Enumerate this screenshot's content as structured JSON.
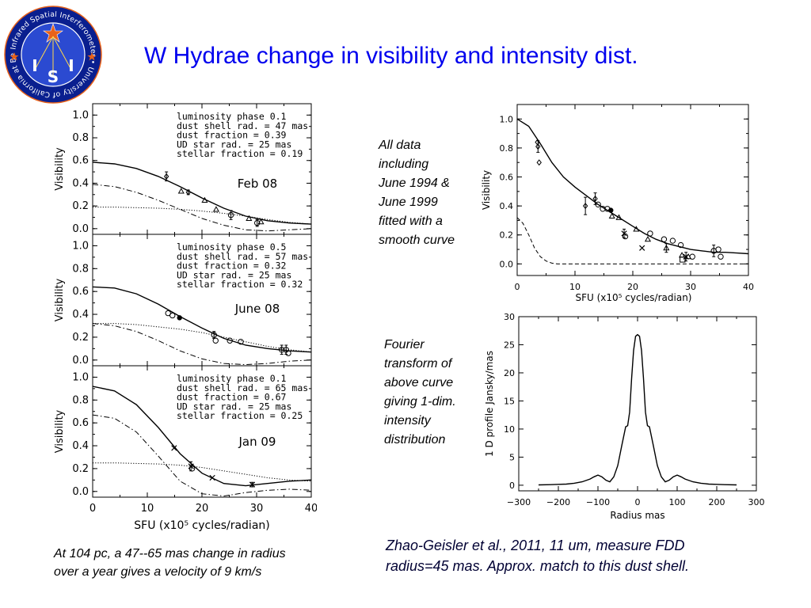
{
  "title": "W Hydrae change in visibility and intensity dist.",
  "logo": {
    "ring_text": "Infrared Spatial Interferometer • University of California at Berkeley",
    "letters": [
      "I",
      "S",
      "I"
    ],
    "colors": {
      "ring": "#0a1f8f",
      "star": "#e8621a",
      "text": "#ffffff"
    }
  },
  "notes": {
    "all_data": [
      "All data",
      "including",
      "June 1994 &",
      "June 1999",
      "fitted with a",
      "smooth curve"
    ],
    "fourier": [
      "Fourier",
      "transform of",
      "above curve",
      "giving 1-dim.",
      "intensity",
      "distribution"
    ],
    "bottom": [
      "At 104 pc, a 47--65 mas change in radius",
      "over a year gives a velocity of 9 km/s"
    ],
    "citation": [
      "Zhao-Geisler et al., 2011, 11 um, measure FDD",
      "radius=45 mas.  Approx. match to this dust shell."
    ]
  },
  "chart_data": [
    {
      "type": "line",
      "panel": "feb08",
      "label": "Feb 08",
      "xlabel": "",
      "ylabel": "Visibility",
      "xlim": [
        0,
        40
      ],
      "ylim": [
        -0.05,
        1.1
      ],
      "yticks": [
        "1.0",
        "0.8",
        "0.6",
        "0.4",
        "0.2",
        "0.0"
      ],
      "params": [
        "luminosity phase 0.1",
        "dust shell rad. = 47 mas",
        "dust fraction = 0.39",
        "UD star rad. = 25 mas",
        "stellar fraction = 0.19"
      ],
      "series": [
        {
          "style": "solid",
          "x": [
            0,
            4,
            8,
            12,
            16,
            20,
            24,
            28,
            32,
            36,
            40
          ],
          "y": [
            0.585,
            0.57,
            0.53,
            0.46,
            0.37,
            0.27,
            0.18,
            0.11,
            0.07,
            0.05,
            0.04
          ]
        },
        {
          "style": "dashdot",
          "x": [
            0,
            4,
            8,
            12,
            16,
            20,
            24,
            28,
            32,
            36,
            40
          ],
          "y": [
            0.39,
            0.37,
            0.32,
            0.25,
            0.17,
            0.09,
            0.03,
            -0.01,
            -0.02,
            -0.01,
            0.0
          ]
        },
        {
          "style": "dotted",
          "x": [
            0,
            4,
            8,
            12,
            16,
            20,
            24,
            28,
            32,
            36,
            40
          ],
          "y": [
            0.19,
            0.19,
            0.185,
            0.18,
            0.17,
            0.155,
            0.135,
            0.11,
            0.08,
            0.055,
            0.04
          ]
        }
      ],
      "points": [
        {
          "x": 13.5,
          "y": 0.46,
          "m": "diamond",
          "err": 0.04
        },
        {
          "x": 16.2,
          "y": 0.33,
          "m": "triangle"
        },
        {
          "x": 17.5,
          "y": 0.32,
          "m": "diamond",
          "err": 0.02
        },
        {
          "x": 20.5,
          "y": 0.25,
          "m": "triangle"
        },
        {
          "x": 22.6,
          "y": 0.17,
          "m": "triangle"
        },
        {
          "x": 25.3,
          "y": 0.12,
          "m": "circle",
          "err": 0.04
        },
        {
          "x": 28.6,
          "y": 0.09,
          "m": "triangle"
        },
        {
          "x": 30.1,
          "y": 0.05,
          "m": "circle",
          "err": 0.03
        },
        {
          "x": 30.8,
          "y": 0.06,
          "m": "triangle"
        }
      ]
    },
    {
      "type": "line",
      "panel": "jun08",
      "label": "June 08",
      "xlabel": "",
      "ylabel": "Visibility",
      "xlim": [
        0,
        40
      ],
      "ylim": [
        -0.05,
        1.1
      ],
      "yticks": [
        "1.0",
        "0.8",
        "0.6",
        "0.4",
        "0.2",
        "0.0"
      ],
      "params": [
        "luminosity phase 0.5",
        "dust shell rad. = 57 mas",
        "dust fraction = 0.32",
        "UD star rad. = 25 mas",
        "stellar fraction = 0.32"
      ],
      "series": [
        {
          "style": "solid",
          "x": [
            0,
            4,
            8,
            12,
            16,
            20,
            24,
            28,
            32,
            36,
            40
          ],
          "y": [
            0.64,
            0.63,
            0.58,
            0.49,
            0.38,
            0.28,
            0.19,
            0.13,
            0.1,
            0.08,
            0.07
          ]
        },
        {
          "style": "dashdot",
          "x": [
            0,
            4,
            8,
            12,
            16,
            20,
            24,
            28,
            32,
            36,
            40
          ],
          "y": [
            0.32,
            0.3,
            0.25,
            0.17,
            0.08,
            0.01,
            -0.03,
            -0.04,
            -0.03,
            -0.01,
            0.0
          ]
        },
        {
          "style": "dotted",
          "x": [
            0,
            4,
            8,
            12,
            16,
            20,
            24,
            28,
            32,
            36,
            40
          ],
          "y": [
            0.32,
            0.32,
            0.31,
            0.29,
            0.27,
            0.24,
            0.2,
            0.16,
            0.12,
            0.09,
            0.07
          ]
        }
      ],
      "points": [
        {
          "x": 13.8,
          "y": 0.41,
          "m": "circle"
        },
        {
          "x": 14.6,
          "y": 0.39,
          "m": "circle"
        },
        {
          "x": 15.9,
          "y": 0.37,
          "m": "filled"
        },
        {
          "x": 22.2,
          "y": 0.22,
          "m": "circle",
          "err": 0.03
        },
        {
          "x": 22.5,
          "y": 0.17,
          "m": "circle"
        },
        {
          "x": 25.1,
          "y": 0.17,
          "m": "circle"
        },
        {
          "x": 27.1,
          "y": 0.16,
          "m": "circle"
        },
        {
          "x": 34.6,
          "y": 0.09,
          "m": "circle",
          "err": 0.04
        },
        {
          "x": 35.4,
          "y": 0.09,
          "m": "circle",
          "err": 0.04
        },
        {
          "x": 35.8,
          "y": 0.06,
          "m": "circle"
        }
      ]
    },
    {
      "type": "line",
      "panel": "jan09",
      "label": "Jan 09",
      "xlabel": "SFU (x10⁵ cycles/radian)",
      "ylabel": "Visibility",
      "xlim": [
        0,
        40
      ],
      "ylim": [
        -0.05,
        1.1
      ],
      "xticks": [
        "0",
        "10",
        "20",
        "30",
        "40"
      ],
      "yticks": [
        "1.0",
        "0.8",
        "0.6",
        "0.4",
        "0.2",
        "0.0"
      ],
      "params": [
        "luminosity phase 0.1",
        "dust shell rad. = 65 mas",
        "dust fraction = 0.67",
        "UD star rad. = 25 mas",
        "stellar fraction = 0.25"
      ],
      "series": [
        {
          "style": "solid",
          "x": [
            0,
            4,
            8,
            12,
            16,
            20,
            24,
            28,
            32,
            36,
            40
          ],
          "y": [
            0.92,
            0.88,
            0.76,
            0.56,
            0.33,
            0.16,
            0.07,
            0.05,
            0.07,
            0.09,
            0.1
          ]
        },
        {
          "style": "dashdot",
          "x": [
            0,
            4,
            8,
            12,
            16,
            20,
            24,
            28,
            32,
            36,
            40
          ],
          "y": [
            0.67,
            0.64,
            0.52,
            0.31,
            0.09,
            -0.02,
            -0.04,
            -0.01,
            0.01,
            0.02,
            0.01
          ]
        },
        {
          "style": "dotted",
          "x": [
            0,
            4,
            8,
            12,
            16,
            20,
            24,
            28,
            32,
            36,
            40
          ],
          "y": [
            0.25,
            0.25,
            0.245,
            0.24,
            0.23,
            0.21,
            0.18,
            0.15,
            0.12,
            0.1,
            0.09
          ]
        }
      ],
      "points": [
        {
          "x": 14.9,
          "y": 0.38,
          "m": "x"
        },
        {
          "x": 18.0,
          "y": 0.22,
          "m": "x",
          "err": 0.04
        },
        {
          "x": 18.2,
          "y": 0.2,
          "m": "circle"
        },
        {
          "x": 21.9,
          "y": 0.12,
          "m": "x"
        },
        {
          "x": 29.2,
          "y": 0.06,
          "m": "x",
          "err": 0.02
        }
      ]
    },
    {
      "type": "line",
      "panel": "all",
      "xlabel": "SFU (x10⁵ cycles/radian)",
      "ylabel": "Visibility",
      "xlim": [
        0,
        40
      ],
      "ylim": [
        -0.08,
        1.1
      ],
      "xticks": [
        "0",
        "10",
        "20",
        "30",
        "40"
      ],
      "yticks": [
        "1.0",
        "0.8",
        "0.6",
        "0.4",
        "0.2",
        "0.0"
      ],
      "series": [
        {
          "style": "solid",
          "x": [
            0,
            2,
            4,
            6,
            8,
            10,
            12,
            14,
            16,
            18,
            20,
            22,
            24,
            26,
            28,
            30,
            32,
            34,
            36,
            38,
            40
          ],
          "y": [
            1.0,
            0.95,
            0.83,
            0.7,
            0.6,
            0.53,
            0.47,
            0.41,
            0.36,
            0.31,
            0.26,
            0.21,
            0.17,
            0.14,
            0.12,
            0.1,
            0.09,
            0.08,
            0.08,
            0.075,
            0.07
          ]
        },
        {
          "style": "dashed",
          "x": [
            0,
            1,
            2,
            3,
            4,
            5,
            6,
            7,
            8,
            9,
            10,
            20,
            30,
            40
          ],
          "y": [
            0.32,
            0.28,
            0.2,
            0.11,
            0.05,
            0.02,
            0.005,
            0.0,
            0.0,
            0.0,
            0.0,
            0.0,
            0.0,
            0.0
          ]
        }
      ],
      "points": [
        {
          "x": 3.5,
          "y": 0.84,
          "m": "diamond"
        },
        {
          "x": 3.6,
          "y": 0.81,
          "m": "diamond",
          "err": 0.04
        },
        {
          "x": 3.8,
          "y": 0.7,
          "m": "diamond"
        },
        {
          "x": 11.8,
          "y": 0.4,
          "m": "diamond",
          "err": 0.06
        },
        {
          "x": 13.5,
          "y": 0.45,
          "m": "diamond",
          "err": 0.04
        },
        {
          "x": 14.0,
          "y": 0.41,
          "m": "circle"
        },
        {
          "x": 14.8,
          "y": 0.38,
          "m": "circle"
        },
        {
          "x": 15.6,
          "y": 0.38,
          "m": "circle"
        },
        {
          "x": 16.2,
          "y": 0.37,
          "m": "filled"
        },
        {
          "x": 16.4,
          "y": 0.33,
          "m": "triangle"
        },
        {
          "x": 17.6,
          "y": 0.32,
          "m": "triangle"
        },
        {
          "x": 18.5,
          "y": 0.21,
          "m": "x",
          "err": 0.03
        },
        {
          "x": 18.7,
          "y": 0.19,
          "m": "circle"
        },
        {
          "x": 20.6,
          "y": 0.24,
          "m": "triangle"
        },
        {
          "x": 21.6,
          "y": 0.11,
          "m": "x"
        },
        {
          "x": 22.6,
          "y": 0.17,
          "m": "triangle"
        },
        {
          "x": 23.0,
          "y": 0.21,
          "m": "circle"
        },
        {
          "x": 25.4,
          "y": 0.17,
          "m": "circle"
        },
        {
          "x": 25.8,
          "y": 0.11,
          "m": "triangle",
          "err": 0.03
        },
        {
          "x": 26.9,
          "y": 0.16,
          "m": "circle"
        },
        {
          "x": 28.3,
          "y": 0.13,
          "m": "circle"
        },
        {
          "x": 28.5,
          "y": 0.06,
          "m": "triangle"
        },
        {
          "x": 28.6,
          "y": 0.03,
          "m": "square"
        },
        {
          "x": 29.2,
          "y": 0.05,
          "m": "x",
          "err": 0.03
        },
        {
          "x": 29.6,
          "y": 0.05,
          "m": "triangle"
        },
        {
          "x": 30.3,
          "y": 0.05,
          "m": "circle"
        },
        {
          "x": 34.0,
          "y": 0.09,
          "m": "circle",
          "err": 0.04
        },
        {
          "x": 34.8,
          "y": 0.1,
          "m": "circle"
        },
        {
          "x": 35.2,
          "y": 0.05,
          "m": "circle"
        }
      ]
    },
    {
      "type": "line",
      "panel": "profile",
      "xlabel": "Radius  mas",
      "ylabel": "1 D  profile  Jansky/mas",
      "xlim": [
        -300,
        300
      ],
      "ylim": [
        -1,
        30
      ],
      "xticks": [
        "−300",
        "−200",
        "−100",
        "0",
        "100",
        "200",
        "300"
      ],
      "yticks": [
        "30",
        "25",
        "20",
        "15",
        "10",
        "5",
        "0"
      ],
      "series": [
        {
          "style": "solid",
          "x": [
            -250,
            -220,
            -200,
            -180,
            -160,
            -140,
            -120,
            -110,
            -100,
            -90,
            -80,
            -70,
            -60,
            -50,
            -40,
            -30,
            -25,
            -20,
            -15,
            -10,
            -5,
            0,
            5,
            10,
            15,
            20,
            25,
            30,
            40,
            50,
            60,
            70,
            80,
            90,
            100,
            110,
            120,
            140,
            160,
            180,
            200,
            220,
            250
          ],
          "y": [
            0.05,
            0.1,
            0.15,
            0.2,
            0.35,
            0.6,
            1.1,
            1.5,
            1.8,
            1.5,
            0.9,
            0.6,
            1.5,
            3.5,
            7.0,
            10.4,
            10.6,
            13,
            19,
            24,
            26.5,
            26.8,
            26.5,
            24,
            19,
            13,
            10.6,
            10.4,
            7.0,
            3.5,
            1.5,
            0.6,
            0.9,
            1.5,
            1.8,
            1.5,
            1.1,
            0.6,
            0.35,
            0.2,
            0.15,
            0.1,
            0.05
          ]
        }
      ]
    }
  ]
}
